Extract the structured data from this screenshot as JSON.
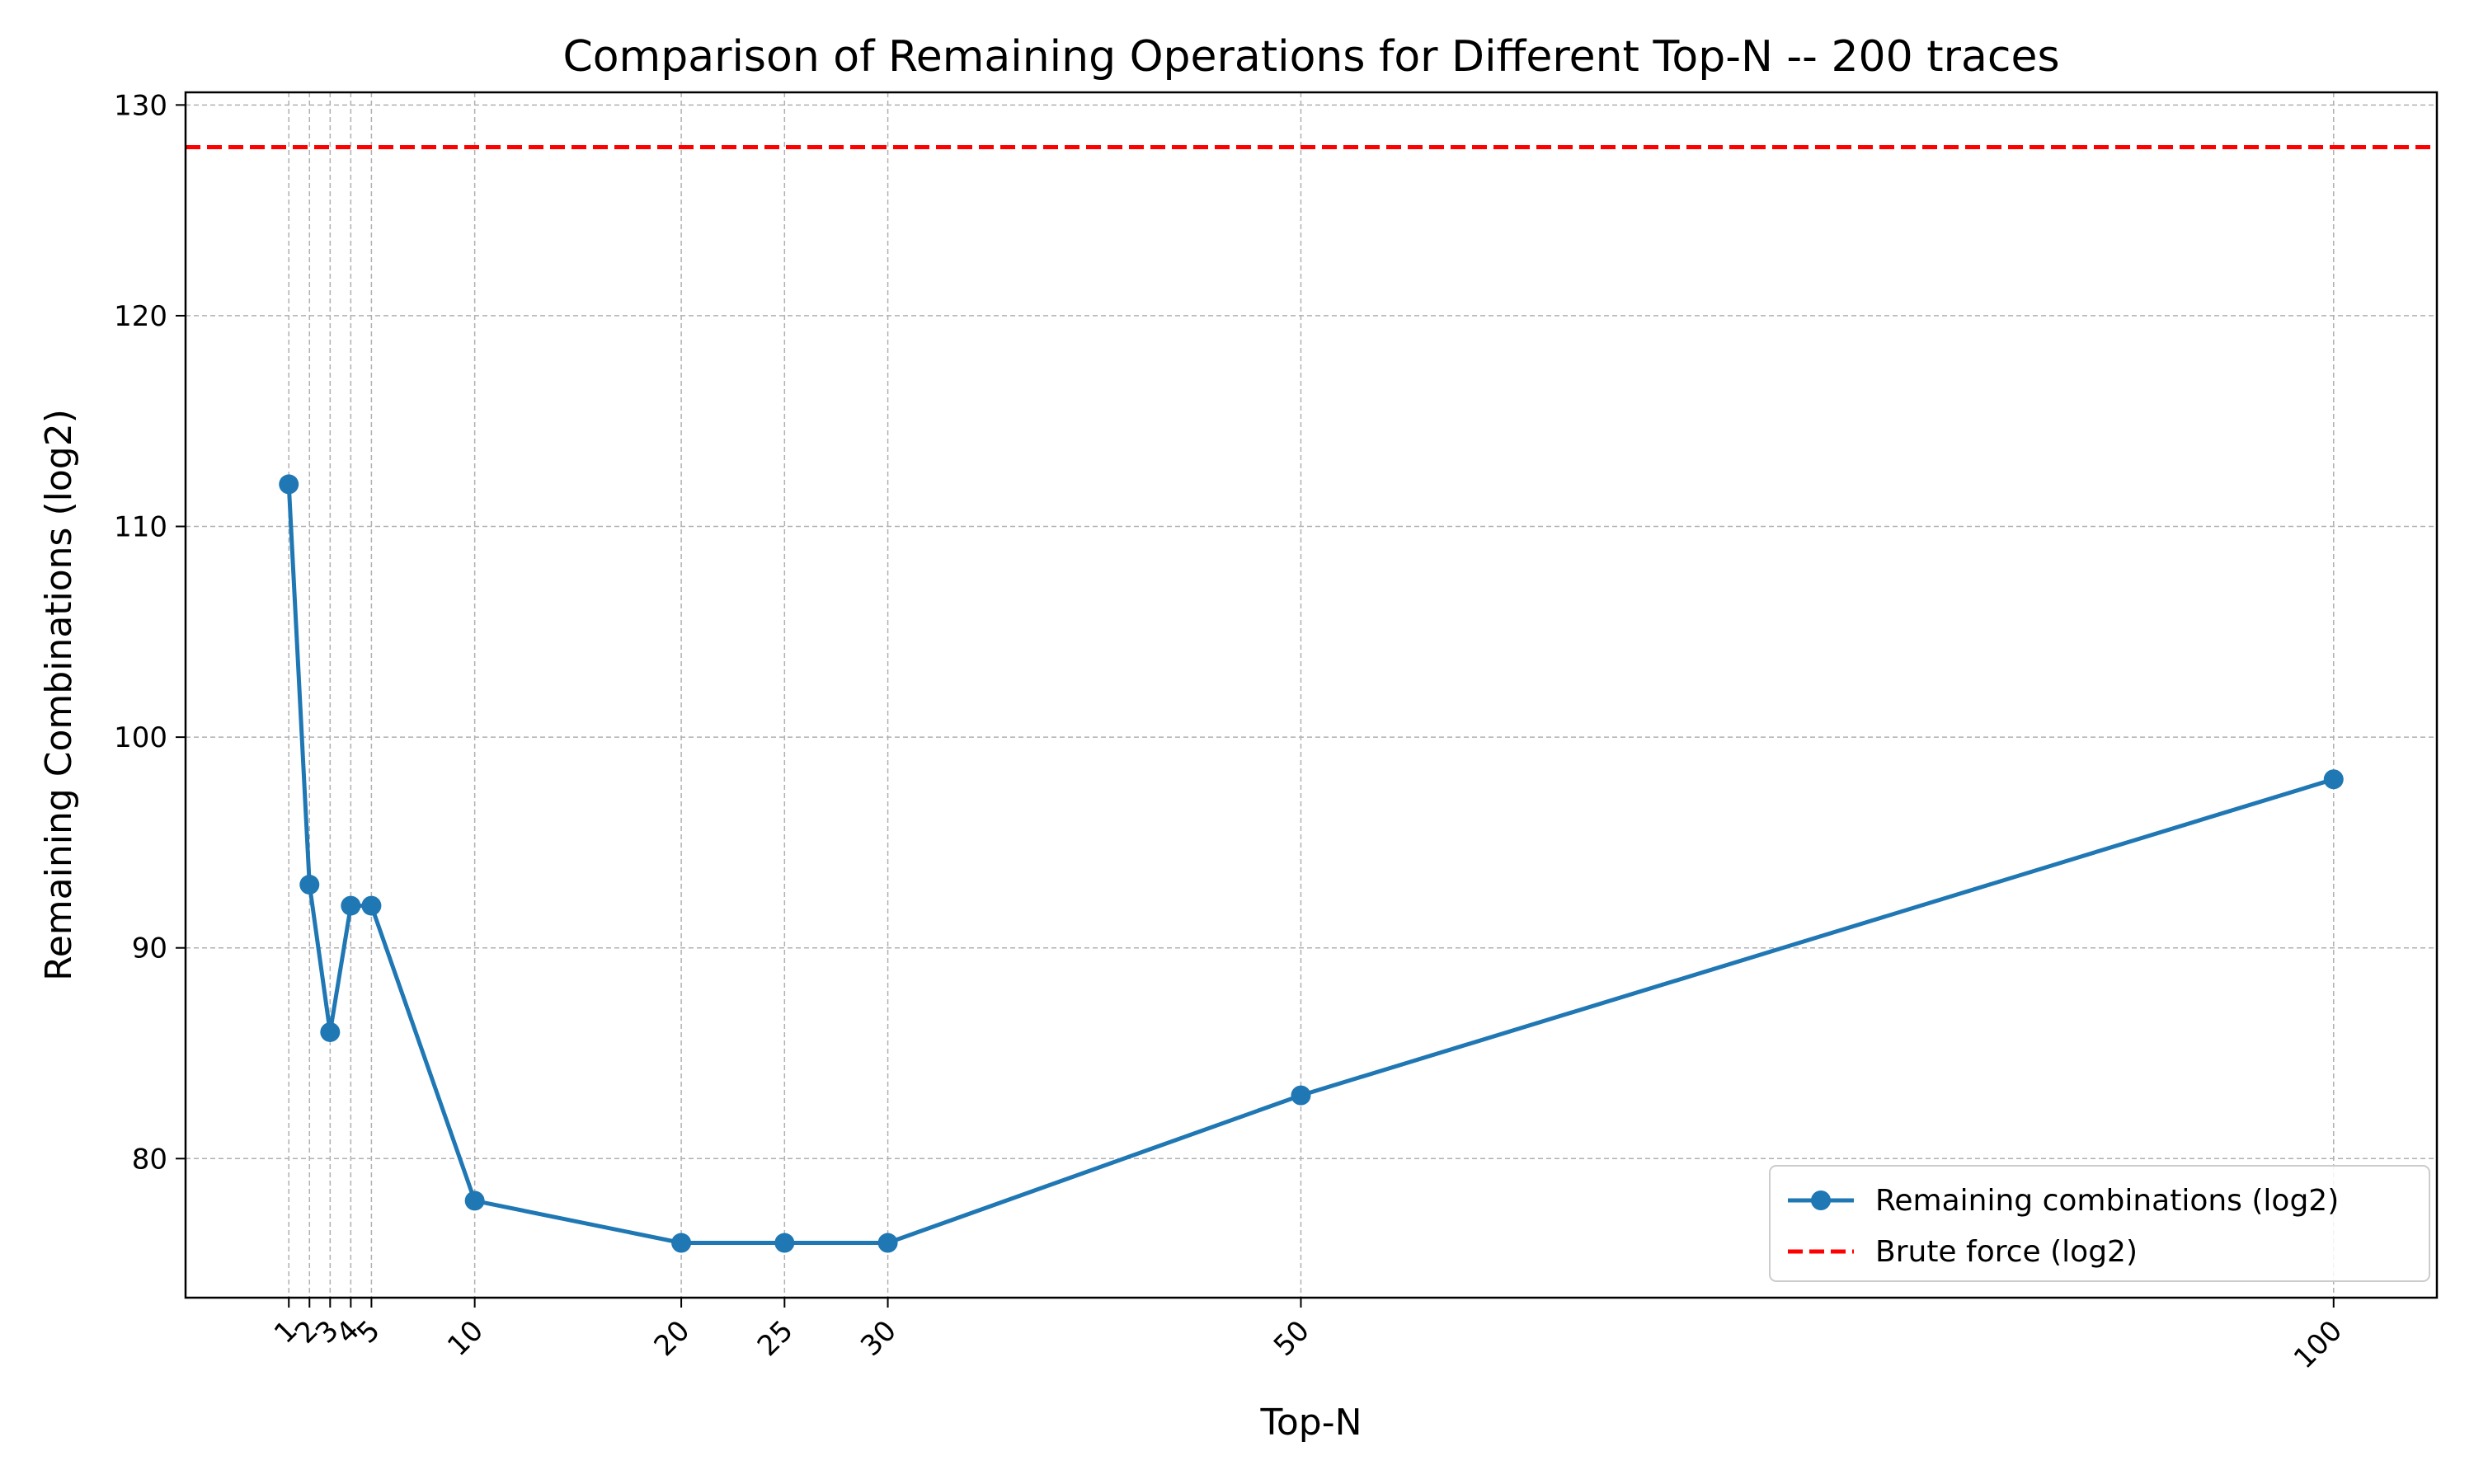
{
  "chart_data": {
    "type": "line",
    "title": "Comparison of Remaining Operations for Different Top-N  -- 200 traces",
    "xlabel": "Top-N",
    "ylabel": "Remaining Combinations (log2)",
    "x": [
      1,
      2,
      3,
      4,
      5,
      10,
      20,
      25,
      30,
      50,
      100
    ],
    "xticks": [
      1,
      2,
      3,
      4,
      5,
      10,
      20,
      25,
      30,
      50,
      100
    ],
    "xlim": [
      -4,
      105
    ],
    "yticks": [
      80,
      90,
      100,
      110,
      120,
      130
    ],
    "ylim": [
      73.4,
      130.6
    ],
    "grid": true,
    "legend_position": "lower-right",
    "series": [
      {
        "name": "Remaining combinations (log2)",
        "values": [
          112,
          93,
          86,
          92,
          92,
          78,
          76,
          76,
          76,
          83,
          98
        ],
        "color": "#1f77b4",
        "marker": "circle"
      }
    ],
    "reference_lines": [
      {
        "name": "Brute force (log2)",
        "y": 128,
        "color": "#ff0000",
        "style": "dashed"
      }
    ]
  }
}
